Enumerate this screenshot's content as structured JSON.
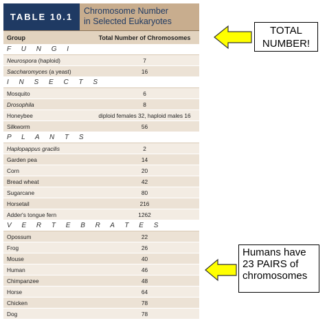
{
  "table": {
    "tag": "TABLE 10.1",
    "title_line1": "Chromosome Number",
    "title_line2": "in Selected Eukaryotes",
    "columns": [
      "Group",
      "Total Number of Chromosomes"
    ],
    "sections": [
      {
        "name": "F U N G I",
        "rows": [
          {
            "organism": "Neurospora",
            "organism_suffix": " (haploid)",
            "italic": true,
            "value": "7"
          },
          {
            "organism": "Saccharomyces",
            "organism_suffix": " (a yeast)",
            "italic": true,
            "value": "16"
          }
        ]
      },
      {
        "name": "I N S E C T S",
        "rows": [
          {
            "organism": "Mosquito",
            "organism_suffix": "",
            "italic": false,
            "value": "6"
          },
          {
            "organism": "Drosophila",
            "organism_suffix": "",
            "italic": true,
            "value": "8"
          },
          {
            "organism": "Honeybee",
            "organism_suffix": "",
            "italic": false,
            "value": "diploid females 32, haploid males 16"
          },
          {
            "organism": "Silkworm",
            "organism_suffix": "",
            "italic": false,
            "value": "56"
          }
        ]
      },
      {
        "name": "P L A N T S",
        "rows": [
          {
            "organism": "Haplopappus gracilis",
            "organism_suffix": "",
            "italic": true,
            "value": "2"
          },
          {
            "organism": "Garden pea",
            "organism_suffix": "",
            "italic": false,
            "value": "14"
          },
          {
            "organism": "Corn",
            "organism_suffix": "",
            "italic": false,
            "value": "20"
          },
          {
            "organism": "Bread wheat",
            "organism_suffix": "",
            "italic": false,
            "value": "42"
          },
          {
            "organism": "Sugarcane",
            "organism_suffix": "",
            "italic": false,
            "value": "80"
          },
          {
            "organism": "Horsetail",
            "organism_suffix": "",
            "italic": false,
            "value": "216"
          },
          {
            "organism": "Adder's tongue fern",
            "organism_suffix": "",
            "italic": false,
            "value": "1262"
          }
        ]
      },
      {
        "name": "V E R T E B R A T E S",
        "rows": [
          {
            "organism": "Opossum",
            "organism_suffix": "",
            "italic": false,
            "value": "22"
          },
          {
            "organism": "Frog",
            "organism_suffix": "",
            "italic": false,
            "value": "26"
          },
          {
            "organism": "Mouse",
            "organism_suffix": "",
            "italic": false,
            "value": "40"
          },
          {
            "organism": "Human",
            "organism_suffix": "",
            "italic": false,
            "value": "46"
          },
          {
            "organism": "Chimpanzee",
            "organism_suffix": "",
            "italic": false,
            "value": "48"
          },
          {
            "organism": "Horse",
            "organism_suffix": "",
            "italic": false,
            "value": "64"
          },
          {
            "organism": "Chicken",
            "organism_suffix": "",
            "italic": false,
            "value": "78"
          },
          {
            "organism": "Dog",
            "organism_suffix": "",
            "italic": false,
            "value": "78"
          }
        ]
      }
    ]
  },
  "callouts": {
    "total": {
      "line1": "TOTAL",
      "line2": "NUMBER!"
    },
    "humans": {
      "line1": "Humans have",
      "line2": "23 PAIRS of",
      "line3": "chromosomes"
    }
  },
  "colors": {
    "tag_bg": "#1f3a63",
    "title_bg": "#c8ad8e",
    "arrow_fill": "#ffff00"
  }
}
